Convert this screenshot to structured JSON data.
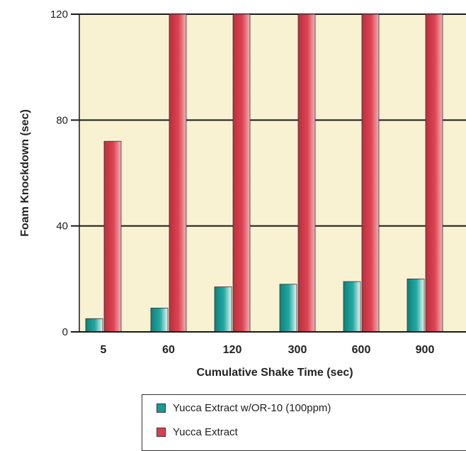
{
  "chart_data": {
    "type": "bar",
    "categories": [
      "5",
      "60",
      "120",
      "300",
      "600",
      "900"
    ],
    "series": [
      {
        "name": "Yucca Extract w/OR-10 (100ppm)",
        "values": [
          5,
          9,
          17,
          18,
          19,
          20
        ],
        "color": "#1a9a94"
      },
      {
        "name": "Yucca Extract",
        "values": [
          72,
          120,
          120,
          120,
          120,
          120
        ],
        "color": "#d9404e"
      }
    ],
    "xlabel": "Cumulative Shake Time (sec)",
    "ylabel": "Foam Knockdown (sec)",
    "ylim": [
      0,
      120
    ],
    "yticks": [
      "0",
      "40",
      "80",
      "120"
    ],
    "grid": true,
    "background_color": "#f8f2d2",
    "legend_position": "bottom"
  }
}
